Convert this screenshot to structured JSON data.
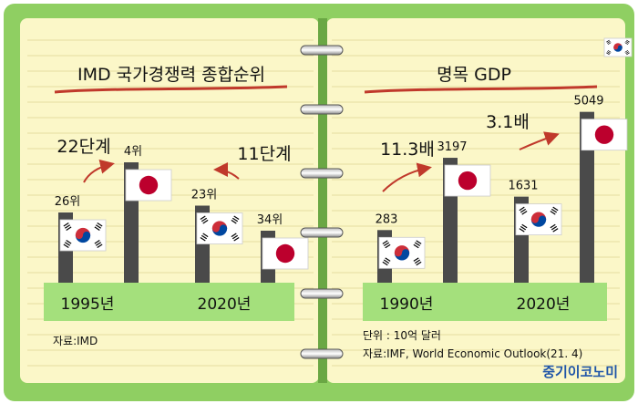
{
  "colors": {
    "frame_green": "#8fcf62",
    "paper": "#fbf7c8",
    "rule_line": "#e4dca0",
    "bar": "#4a4a4a",
    "category_band": "#a4e07c",
    "arrow_red": "#c0392b",
    "brand_blue": "#1f55a8"
  },
  "icons": {
    "korea_flag": "korea-flag-icon",
    "japan_flag": "japan-flag-icon",
    "ring": "binder-ring-icon"
  },
  "chart_data": [
    {
      "type": "bar",
      "title": "IMD 국가경쟁력 종합순위",
      "categories": [
        "1995년",
        "2020년"
      ],
      "series": [
        {
          "name": "Korea",
          "flag": "korea_flag",
          "values": [
            26,
            23
          ],
          "labels": [
            "26위",
            "23위"
          ]
        },
        {
          "name": "Japan",
          "flag": "japan_flag",
          "values": [
            4,
            34
          ],
          "labels": [
            "4위",
            "34위"
          ]
        }
      ],
      "annotations": [
        "22단계",
        "11단계"
      ],
      "source": "자료:IMD"
    },
    {
      "type": "bar",
      "title": "명목 GDP",
      "categories": [
        "1990년",
        "2020년"
      ],
      "series": [
        {
          "name": "Korea",
          "flag": "korea_flag",
          "values": [
            283,
            1631
          ],
          "labels": [
            "283",
            "1631"
          ]
        },
        {
          "name": "Japan",
          "flag": "japan_flag",
          "values": [
            3197,
            5049
          ],
          "labels": [
            "3197",
            "5049"
          ]
        }
      ],
      "annotations": [
        "11.3배",
        "3.1배"
      ],
      "unit": "단위 : 10억 달러",
      "source": "자료:IMF, World Economic Outlook(21. 4)"
    }
  ],
  "brand": "중기이코노미"
}
